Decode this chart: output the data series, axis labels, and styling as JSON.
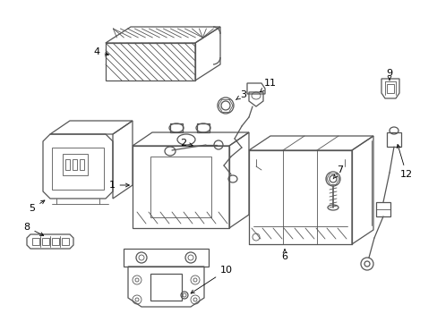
{
  "background_color": "#ffffff",
  "line_color": "#555555",
  "text_color": "#000000",
  "fig_width": 4.89,
  "fig_height": 3.6,
  "dpi": 100
}
